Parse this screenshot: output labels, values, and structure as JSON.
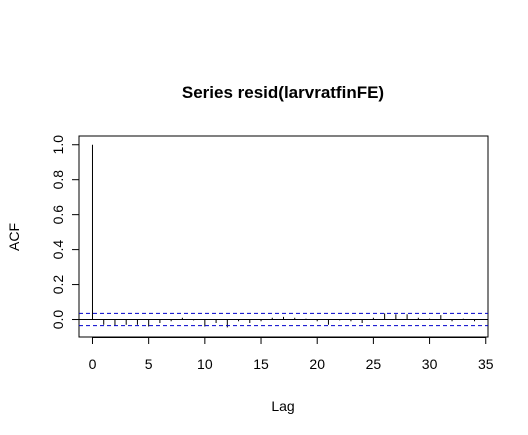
{
  "chart_data": {
    "type": "bar",
    "title": "Series  resid(larvratfinFE)",
    "xlabel": "Lag",
    "ylabel": "ACF",
    "xlim": [
      -1.2,
      35.2
    ],
    "ylim": [
      -0.1,
      1.05
    ],
    "x_ticks": [
      "0",
      "5",
      "10",
      "15",
      "20",
      "25",
      "30",
      "35"
    ],
    "y_ticks": [
      "0.0",
      "0.2",
      "0.4",
      "0.6",
      "0.8",
      "1.0"
    ],
    "confidence_bound": 0.035,
    "lags": [
      0,
      1,
      2,
      3,
      4,
      5,
      6,
      7,
      8,
      9,
      10,
      11,
      12,
      13,
      14,
      15,
      16,
      17,
      18,
      19,
      20,
      21,
      22,
      23,
      24,
      25,
      26,
      27,
      28,
      29,
      30,
      31,
      32,
      33,
      34
    ],
    "values": [
      1.0,
      -0.03,
      -0.035,
      -0.03,
      -0.03,
      -0.04,
      -0.02,
      -0.01,
      0.01,
      -0.005,
      -0.04,
      -0.02,
      -0.045,
      -0.01,
      -0.02,
      -0.01,
      0.01,
      0.015,
      0.01,
      0.005,
      -0.01,
      -0.03,
      -0.005,
      -0.01,
      -0.02,
      0.01,
      0.035,
      0.03,
      0.03,
      0.01,
      0.005,
      0.025,
      -0.01,
      0.005,
      -0.01
    ],
    "series_color": "#000000",
    "bound_color": "#0000cc",
    "grid": false
  }
}
